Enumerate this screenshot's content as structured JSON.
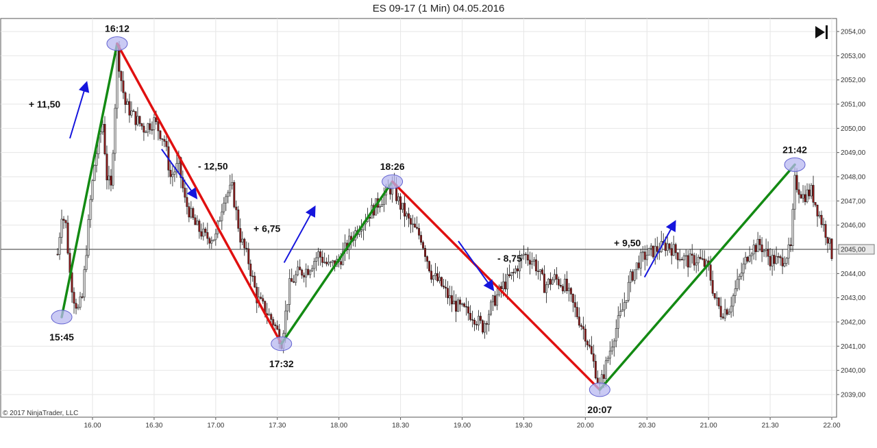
{
  "chart_data": {
    "type": "candlestick",
    "title": "ES 09-17 (1 Min)  04.05.2016",
    "copyright": "© 2017 NinjaTrader, LLC",
    "x_range": [
      "15:40",
      "22:00"
    ],
    "y_range": [
      2038.2,
      2054.5
    ],
    "x_ticks": [
      "16.00",
      "16.30",
      "17.00",
      "17.30",
      "18.00",
      "18.30",
      "19.00",
      "19.30",
      "20.00",
      "20.30",
      "21.00",
      "21.30",
      "22.00"
    ],
    "y_ticks": [
      "2039,00",
      "2040,00",
      "2041,00",
      "2042,00",
      "2043,00",
      "2044,00",
      "2045,00",
      "2046,00",
      "2047,00",
      "2048,00",
      "2049,00",
      "2050,00",
      "2051,00",
      "2052,00",
      "2053,00",
      "2054,00"
    ],
    "price_line": {
      "value": 2045.0,
      "label": "2045,00"
    },
    "price_path": [
      [
        "15:43",
        2044.8
      ],
      [
        "15:45",
        2046.5
      ],
      [
        "15:47",
        2046.0
      ],
      [
        "15:49",
        2044.0
      ],
      [
        "15:51",
        2043.0
      ],
      [
        "15:53",
        2042.5
      ],
      [
        "15:55",
        2043.0
      ],
      [
        "15:57",
        2045.0
      ],
      [
        "15:59",
        2047.0
      ],
      [
        "16:01",
        2048.5
      ],
      [
        "16:03",
        2049.5
      ],
      [
        "16:05",
        2050.2
      ],
      [
        "16:07",
        2048.0
      ],
      [
        "16:09",
        2047.5
      ],
      [
        "16:11",
        2051.0
      ],
      [
        "16:12",
        2053.3
      ],
      [
        "16:14",
        2052.0
      ],
      [
        "16:16",
        2051.0
      ],
      [
        "16:20",
        2050.5
      ],
      [
        "16:25",
        2050.0
      ],
      [
        "16:30",
        2050.3
      ],
      [
        "16:35",
        2049.5
      ],
      [
        "16:38",
        2048.0
      ],
      [
        "16:42",
        2048.5
      ],
      [
        "16:45",
        2047.0
      ],
      [
        "16:50",
        2046.0
      ],
      [
        "16:55",
        2045.5
      ],
      [
        "17:00",
        2045.5
      ],
      [
        "17:04",
        2047.2
      ],
      [
        "17:08",
        2047.5
      ],
      [
        "17:12",
        2045.5
      ],
      [
        "17:16",
        2044.5
      ],
      [
        "17:20",
        2043.0
      ],
      [
        "17:24",
        2042.5
      ],
      [
        "17:28",
        2042.0
      ],
      [
        "17:32",
        2041.2
      ],
      [
        "17:36",
        2043.5
      ],
      [
        "17:40",
        2044.0
      ],
      [
        "17:45",
        2044.2
      ],
      [
        "17:50",
        2044.8
      ],
      [
        "17:55",
        2044.3
      ],
      [
        "18:00",
        2044.5
      ],
      [
        "18:05",
        2045.3
      ],
      [
        "18:10",
        2046.0
      ],
      [
        "18:15",
        2046.5
      ],
      [
        "18:20",
        2047.0
      ],
      [
        "18:26",
        2047.6
      ],
      [
        "18:30",
        2046.8
      ],
      [
        "18:35",
        2046.0
      ],
      [
        "18:40",
        2045.5
      ],
      [
        "18:45",
        2044.0
      ],
      [
        "18:50",
        2043.5
      ],
      [
        "18:55",
        2042.8
      ],
      [
        "19:00",
        2042.5
      ],
      [
        "19:05",
        2042.3
      ],
      [
        "19:10",
        2041.8
      ],
      [
        "19:15",
        2042.8
      ],
      [
        "19:20",
        2043.5
      ],
      [
        "19:25",
        2044.0
      ],
      [
        "19:30",
        2044.8
      ],
      [
        "19:35",
        2044.5
      ],
      [
        "19:40",
        2043.5
      ],
      [
        "19:45",
        2043.8
      ],
      [
        "19:50",
        2043.5
      ],
      [
        "19:55",
        2042.5
      ],
      [
        "20:00",
        2041.5
      ],
      [
        "20:04",
        2040.3
      ],
      [
        "20:07",
        2039.3
      ],
      [
        "20:10",
        2040.2
      ],
      [
        "20:14",
        2041.5
      ],
      [
        "20:18",
        2042.5
      ],
      [
        "20:22",
        2043.8
      ],
      [
        "20:26",
        2044.5
      ],
      [
        "20:30",
        2044.8
      ],
      [
        "20:35",
        2045.0
      ],
      [
        "20:40",
        2045.2
      ],
      [
        "20:45",
        2044.8
      ],
      [
        "20:50",
        2044.5
      ],
      [
        "20:55",
        2044.6
      ],
      [
        "21:00",
        2044.2
      ],
      [
        "21:03",
        2043.0
      ],
      [
        "21:06",
        2042.4
      ],
      [
        "21:10",
        2042.6
      ],
      [
        "21:15",
        2043.8
      ],
      [
        "21:20",
        2045.0
      ],
      [
        "21:25",
        2045.2
      ],
      [
        "21:30",
        2044.6
      ],
      [
        "21:35",
        2044.5
      ],
      [
        "21:40",
        2045.0
      ],
      [
        "21:42",
        2047.8
      ],
      [
        "21:46",
        2047.2
      ],
      [
        "21:50",
        2047.4
      ],
      [
        "21:54",
        2046.4
      ],
      [
        "21:58",
        2045.5
      ],
      [
        "22:00",
        2044.8
      ]
    ],
    "swings": [
      {
        "time": "15:45",
        "price": 2042.2,
        "label": "15:45"
      },
      {
        "time": "16:12",
        "price": 2053.5,
        "label": "16:12"
      },
      {
        "time": "17:32",
        "price": 2041.1,
        "label": "17:32"
      },
      {
        "time": "18:26",
        "price": 2047.8,
        "label": "18:26"
      },
      {
        "time": "20:07",
        "price": 2039.2,
        "label": "20:07"
      },
      {
        "time": "21:42",
        "price": 2048.5,
        "label": "21:42"
      }
    ],
    "move_annotations": [
      {
        "text": "+ 11,50",
        "direction": "up"
      },
      {
        "text": "- 12,50",
        "direction": "down"
      },
      {
        "text": "+ 6,75",
        "direction": "up"
      },
      {
        "text": "- 8,75",
        "direction": "down"
      },
      {
        "text": "+ 9,50",
        "direction": "up"
      }
    ],
    "colors": {
      "up_line": "#138a13",
      "down_line": "#e01010",
      "arrow": "#1515dd",
      "circle_fill": "#b8b8f0",
      "circle_stroke": "#6060d0",
      "candle_up": "#cfcfcf",
      "candle_down": "#8b1a1a",
      "grid": "#e6e6e6",
      "price_line": "#777777"
    }
  }
}
